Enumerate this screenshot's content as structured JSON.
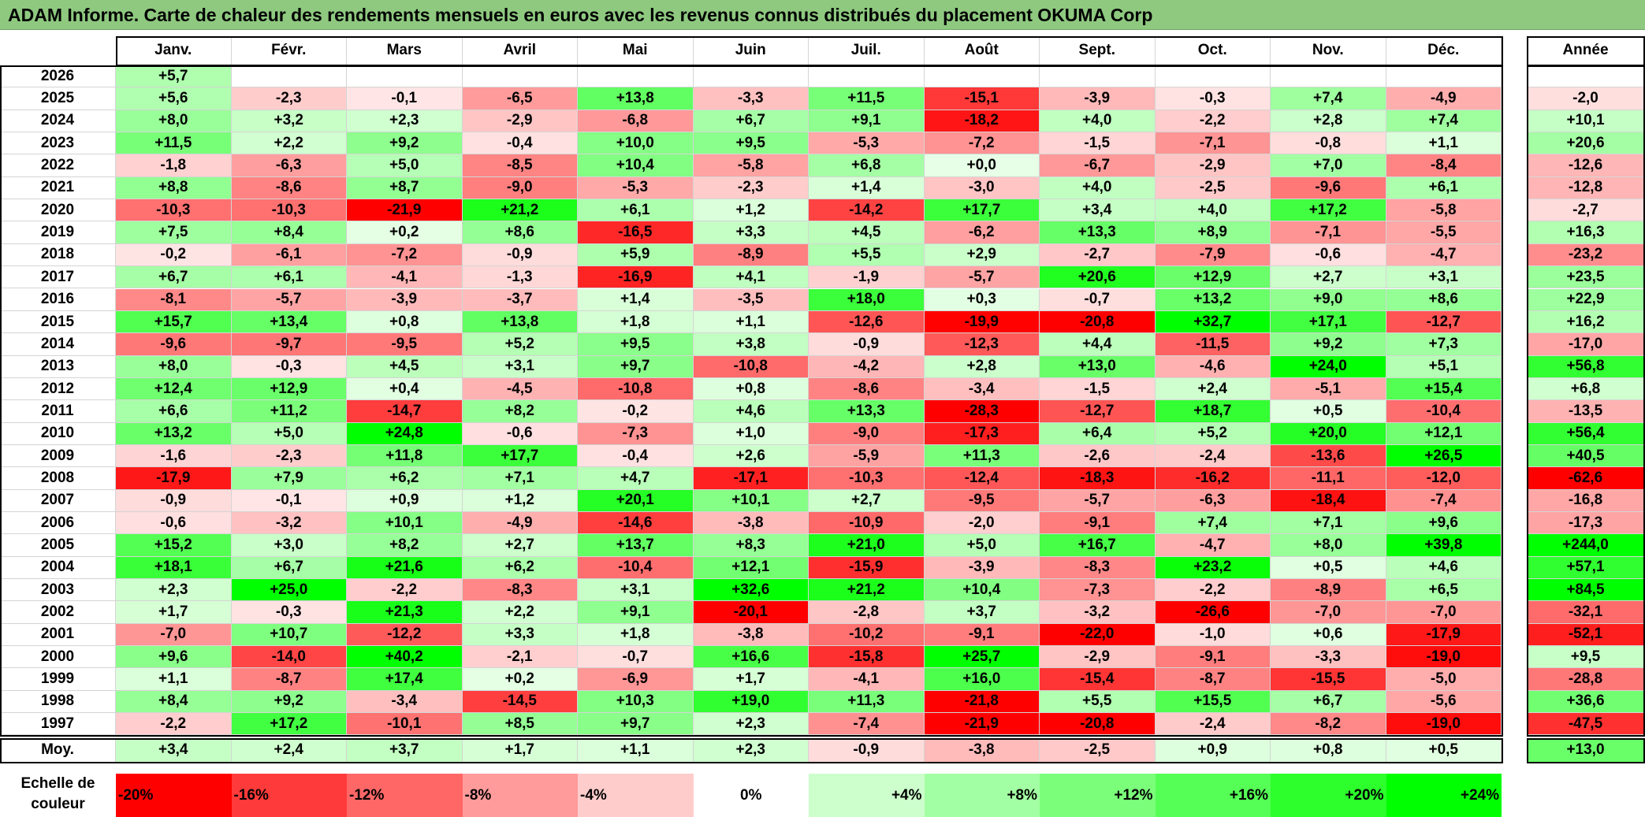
{
  "title": "ADAM Informe. Carte de chaleur des rendements mensuels en euros avec les revenus connus distribués du placement OKUMA Corp",
  "chart_data": {
    "type": "heatmap",
    "months": [
      "Janv.",
      "Févr.",
      "Mars",
      "Avril",
      "Mai",
      "Juin",
      "Juil.",
      "Août",
      "Sept.",
      "Oct.",
      "Nov.",
      "Déc."
    ],
    "year_header": "Année",
    "rows": [
      {
        "year": "2026",
        "values": [
          "+5,7",
          "",
          "",
          "",
          "",
          "",
          "",
          "",
          "",
          "",
          "",
          ""
        ],
        "annual": ""
      },
      {
        "year": "2025",
        "values": [
          "+5,6",
          "-2,3",
          "-0,1",
          "-6,5",
          "+13,8",
          "-3,3",
          "+11,5",
          "-15,1",
          "-3,9",
          "-0,3",
          "+7,4",
          "-4,9"
        ],
        "annual": "-2,0"
      },
      {
        "year": "2024",
        "values": [
          "+8,0",
          "+3,2",
          "+2,3",
          "-2,9",
          "-6,8",
          "+6,7",
          "+9,1",
          "-18,2",
          "+4,0",
          "-2,2",
          "+2,8",
          "+7,4"
        ],
        "annual": "+10,1"
      },
      {
        "year": "2023",
        "values": [
          "+11,5",
          "+2,2",
          "+9,2",
          "-0,4",
          "+10,0",
          "+9,5",
          "-5,3",
          "-7,2",
          "-1,5",
          "-7,1",
          "-0,8",
          "+1,1"
        ],
        "annual": "+20,6"
      },
      {
        "year": "2022",
        "values": [
          "-1,8",
          "-6,3",
          "+5,0",
          "-8,5",
          "+10,4",
          "-5,8",
          "+6,8",
          "+0,0",
          "-6,7",
          "-2,9",
          "+7,0",
          "-8,4"
        ],
        "annual": "-12,6"
      },
      {
        "year": "2021",
        "values": [
          "+8,8",
          "-8,6",
          "+8,7",
          "-9,0",
          "-5,3",
          "-2,3",
          "+1,4",
          "-3,0",
          "+4,0",
          "-2,5",
          "-9,6",
          "+6,1"
        ],
        "annual": "-12,8"
      },
      {
        "year": "2020",
        "values": [
          "-10,3",
          "-10,3",
          "-21,9",
          "+21,2",
          "+6,1",
          "+1,2",
          "-14,2",
          "+17,7",
          "+3,4",
          "+4,0",
          "+17,2",
          "-5,8"
        ],
        "annual": "-2,7"
      },
      {
        "year": "2019",
        "values": [
          "+7,5",
          "+8,4",
          "+0,2",
          "+8,6",
          "-16,5",
          "+3,3",
          "+4,5",
          "-6,2",
          "+13,3",
          "+8,9",
          "-7,1",
          "-5,5"
        ],
        "annual": "+16,3"
      },
      {
        "year": "2018",
        "values": [
          "-0,2",
          "-6,1",
          "-7,2",
          "-0,9",
          "+5,9",
          "-8,9",
          "+5,5",
          "+2,9",
          "-2,7",
          "-7,9",
          "-0,6",
          "-4,7"
        ],
        "annual": "-23,2"
      },
      {
        "year": "2017",
        "values": [
          "+6,7",
          "+6,1",
          "-4,1",
          "-1,3",
          "-16,9",
          "+4,1",
          "-1,9",
          "-5,7",
          "+20,6",
          "+12,9",
          "+2,7",
          "+3,1"
        ],
        "annual": "+23,5"
      },
      {
        "year": "2016",
        "values": [
          "-8,1",
          "-5,7",
          "-3,9",
          "-3,7",
          "+1,4",
          "-3,5",
          "+18,0",
          "+0,3",
          "-0,7",
          "+13,2",
          "+9,0",
          "+8,6"
        ],
        "annual": "+22,9"
      },
      {
        "year": "2015",
        "values": [
          "+15,7",
          "+13,4",
          "+0,8",
          "+13,8",
          "+1,8",
          "+1,1",
          "-12,6",
          "-19,9",
          "-20,8",
          "+32,7",
          "+17,1",
          "-12,7"
        ],
        "annual": "+16,2"
      },
      {
        "year": "2014",
        "values": [
          "-9,6",
          "-9,7",
          "-9,5",
          "+5,2",
          "+9,5",
          "+3,8",
          "-0,9",
          "-12,3",
          "+4,4",
          "-11,5",
          "+9,2",
          "+7,3"
        ],
        "annual": "-17,0"
      },
      {
        "year": "2013",
        "values": [
          "+8,0",
          "-0,3",
          "+4,5",
          "+3,1",
          "+9,7",
          "-10,8",
          "-4,2",
          "+2,8",
          "+13,0",
          "-4,6",
          "+24,0",
          "+5,1"
        ],
        "annual": "+56,8"
      },
      {
        "year": "2012",
        "values": [
          "+12,4",
          "+12,9",
          "+0,4",
          "-4,5",
          "-10,8",
          "+0,8",
          "-8,6",
          "-3,4",
          "-1,5",
          "+2,4",
          "-5,1",
          "+15,4"
        ],
        "annual": "+6,8"
      },
      {
        "year": "2011",
        "values": [
          "+6,6",
          "+11,2",
          "-14,7",
          "+8,2",
          "-0,2",
          "+4,6",
          "+13,3",
          "-28,3",
          "-12,7",
          "+18,7",
          "+0,5",
          "-10,4"
        ],
        "annual": "-13,5"
      },
      {
        "year": "2010",
        "values": [
          "+13,2",
          "+5,0",
          "+24,8",
          "-0,6",
          "-7,3",
          "+1,0",
          "-9,0",
          "-17,3",
          "+6,4",
          "+5,2",
          "+20,0",
          "+12,1"
        ],
        "annual": "+56,4"
      },
      {
        "year": "2009",
        "values": [
          "-1,6",
          "-2,3",
          "+11,8",
          "+17,7",
          "-0,4",
          "+2,6",
          "-5,9",
          "+11,3",
          "-2,6",
          "-2,4",
          "-13,6",
          "+26,5"
        ],
        "annual": "+40,5"
      },
      {
        "year": "2008",
        "values": [
          "-17,9",
          "+7,9",
          "+6,2",
          "+7,1",
          "+4,7",
          "-17,1",
          "-10,3",
          "-12,4",
          "-18,3",
          "-16,2",
          "-11,1",
          "-12,0"
        ],
        "annual": "-62,6"
      },
      {
        "year": "2007",
        "values": [
          "-0,9",
          "-0,1",
          "+0,9",
          "+1,2",
          "+20,1",
          "+10,1",
          "+2,7",
          "-9,5",
          "-5,7",
          "-6,3",
          "-18,4",
          "-7,4"
        ],
        "annual": "-16,8"
      },
      {
        "year": "2006",
        "values": [
          "-0,6",
          "-3,2",
          "+10,1",
          "-4,9",
          "-14,6",
          "-3,8",
          "-10,9",
          "-2,0",
          "-9,1",
          "+7,4",
          "+7,1",
          "+9,6"
        ],
        "annual": "-17,3"
      },
      {
        "year": "2005",
        "values": [
          "+15,2",
          "+3,0",
          "+8,2",
          "+2,7",
          "+13,7",
          "+8,3",
          "+21,0",
          "+5,0",
          "+16,7",
          "-4,7",
          "+8,0",
          "+39,8"
        ],
        "annual": "+244,0"
      },
      {
        "year": "2004",
        "values": [
          "+18,1",
          "+6,7",
          "+21,6",
          "+6,2",
          "-10,4",
          "+12,1",
          "-15,9",
          "-3,9",
          "-8,3",
          "+23,2",
          "+0,5",
          "+4,6"
        ],
        "annual": "+57,1"
      },
      {
        "year": "2003",
        "values": [
          "+2,3",
          "+25,0",
          "-2,2",
          "-8,3",
          "+3,1",
          "+32,6",
          "+21,2",
          "+10,4",
          "-7,3",
          "-2,2",
          "-8,9",
          "+6,5"
        ],
        "annual": "+84,5"
      },
      {
        "year": "2002",
        "values": [
          "+1,7",
          "-0,3",
          "+21,3",
          "+2,2",
          "+9,1",
          "-20,1",
          "-2,8",
          "+3,7",
          "-3,2",
          "-26,6",
          "-7,0",
          "-7,0"
        ],
        "annual": "-32,1"
      },
      {
        "year": "2001",
        "values": [
          "-7,0",
          "+10,7",
          "-12,2",
          "+3,3",
          "+1,8",
          "-3,8",
          "-10,2",
          "-9,1",
          "-22,0",
          "-1,0",
          "+0,6",
          "-17,9"
        ],
        "annual": "-52,1"
      },
      {
        "year": "2000",
        "values": [
          "+9,6",
          "-14,0",
          "+40,2",
          "-2,1",
          "-0,7",
          "+16,6",
          "-15,8",
          "+25,7",
          "-2,9",
          "-9,1",
          "-3,3",
          "-19,0"
        ],
        "annual": "+9,5"
      },
      {
        "year": "1999",
        "values": [
          "+1,1",
          "-8,7",
          "+17,4",
          "+0,2",
          "-6,9",
          "+1,7",
          "-4,1",
          "+16,0",
          "-15,4",
          "-8,7",
          "-15,5",
          "-5,0"
        ],
        "annual": "-28,8"
      },
      {
        "year": "1998",
        "values": [
          "+8,4",
          "+9,2",
          "-3,4",
          "-14,5",
          "+10,3",
          "+19,0",
          "+11,3",
          "-21,8",
          "+5,5",
          "+15,5",
          "+6,7",
          "-5,6"
        ],
        "annual": "+36,6"
      },
      {
        "year": "1997",
        "values": [
          "-2,2",
          "+17,2",
          "-10,1",
          "+8,5",
          "+9,7",
          "+2,3",
          "-7,4",
          "-21,9",
          "-20,8",
          "-2,4",
          "-8,2",
          "-19,0"
        ],
        "annual": "-47,5"
      }
    ],
    "average": {
      "label": "Moy.",
      "values": [
        "+3,4",
        "+2,4",
        "+3,7",
        "+1,7",
        "+1,1",
        "+2,3",
        "-0,9",
        "-3,8",
        "-2,5",
        "+0,9",
        "+0,8",
        "+0,5"
      ],
      "annual": "+13,0"
    },
    "color_scale": {
      "label": "Echelle de couleur",
      "steps": [
        {
          "label": "-20%",
          "value": -20,
          "color": "#ff0000"
        },
        {
          "label": "-16%",
          "value": -16,
          "color": "#ff3a3a"
        },
        {
          "label": "-12%",
          "value": -12,
          "color": "#ff6767"
        },
        {
          "label": "-8%",
          "value": -8,
          "color": "#ff9b9b"
        },
        {
          "label": "-4%",
          "value": -4,
          "color": "#ffcccc"
        },
        {
          "label": "0%",
          "value": 0,
          "color": "#ffffff"
        },
        {
          "label": "+4%",
          "value": 4,
          "color": "#ccffcc"
        },
        {
          "label": "+8%",
          "value": 8,
          "color": "#a3ffa3"
        },
        {
          "label": "+12%",
          "value": 12,
          "color": "#7bff7b"
        },
        {
          "label": "+16%",
          "value": 16,
          "color": "#55ff55"
        },
        {
          "label": "+20%",
          "value": 20,
          "color": "#2cff2c"
        },
        {
          "label": "+24%",
          "value": 24,
          "color": "#00ff00"
        }
      ]
    }
  }
}
